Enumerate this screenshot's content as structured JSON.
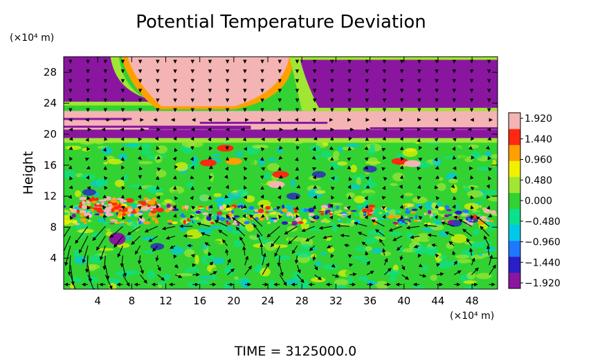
{
  "chart_data": {
    "type": "heatmap",
    "title": "Potential Temperature Deviation",
    "ylabel": "Height",
    "y_unit_label": "(×10⁴ m)",
    "x_unit_label": "(×10⁴ m)",
    "x_ticks": [
      4,
      8,
      12,
      16,
      20,
      24,
      28,
      32,
      36,
      40,
      44,
      48
    ],
    "y_ticks": [
      4,
      8,
      12,
      16,
      20,
      24,
      28
    ],
    "xlim": [
      0,
      51
    ],
    "ylim": [
      0,
      30
    ],
    "colorbar": {
      "ticks": [
        "1.920",
        "1.440",
        "0.960",
        "0.480",
        "0.000",
        "−0.480",
        "−0.960",
        "−1.440",
        "−1.920"
      ],
      "min": -1.92,
      "max": 1.92,
      "colors": [
        "#8a16a0",
        "#2a1ec8",
        "#1e78ff",
        "#00c8e8",
        "#0ce08c",
        "#32d232",
        "#a0e632",
        "#f0f000",
        "#ffa000",
        "#ff2810",
        "#f4b4b4"
      ]
    },
    "regions": [
      {
        "name": "upper-left purple",
        "x": [
          0,
          7
        ],
        "y": [
          23.5,
          30
        ],
        "value": -1.92
      },
      {
        "name": "upper-center pink",
        "x": [
          8,
          26
        ],
        "y": [
          22.5,
          30
        ],
        "value": 1.92
      },
      {
        "name": "upper-right purple",
        "x": [
          27,
          51
        ],
        "y": [
          23,
          30
        ],
        "value": -1.92
      },
      {
        "name": "pink band",
        "x": [
          0,
          51
        ],
        "y": [
          20.5,
          23
        ],
        "value": 1.92
      },
      {
        "name": "purple band",
        "x": [
          0,
          51
        ],
        "y": [
          19.5,
          20.5
        ],
        "value": -1.92
      },
      {
        "name": "mid-level green",
        "x": [
          0,
          51
        ],
        "y": [
          10,
          19.5
        ],
        "value": 0.0
      },
      {
        "name": "noisy layer",
        "x": [
          0,
          51
        ],
        "y": [
          8.5,
          10.5
        ],
        "value": 0.9
      },
      {
        "name": "lower green",
        "x": [
          0,
          51
        ],
        "y": [
          0,
          8.5
        ],
        "value": 0.1
      }
    ],
    "vector_overlay": true
  },
  "footer": {
    "time_label": "TIME  =  3125000.0"
  }
}
